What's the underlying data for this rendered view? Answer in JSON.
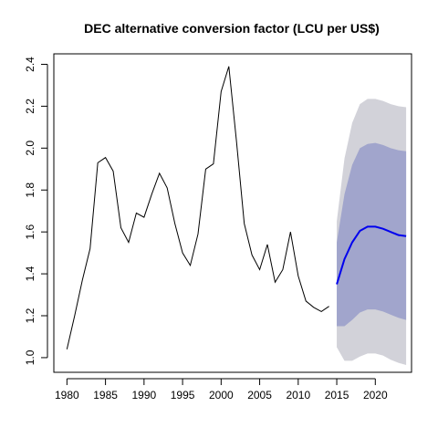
{
  "chart_data": {
    "type": "line",
    "title": "DEC alternative conversion factor (LCU per US$)",
    "xlabel": "",
    "ylabel": "",
    "xlim": [
      1978.3,
      2024.7
    ],
    "ylim": [
      0.93,
      2.45
    ],
    "x_ticks": [
      1980,
      1985,
      1990,
      1995,
      2000,
      2005,
      2010,
      2015,
      2020
    ],
    "y_ticks": [
      1.0,
      1.2,
      1.4,
      1.6,
      1.8,
      2.0,
      2.2,
      2.4
    ],
    "grid": false,
    "historical": {
      "x": [
        1980,
        1981,
        1982,
        1983,
        1984,
        1985,
        1986,
        1987,
        1988,
        1989,
        1990,
        1991,
        1992,
        1993,
        1994,
        1995,
        1996,
        1997,
        1998,
        1999,
        2000,
        2001,
        2002,
        2003,
        2004,
        2005,
        2006,
        2007,
        2008,
        2009,
        2010,
        2011,
        2012,
        2013,
        2014
      ],
      "y": [
        1.04,
        1.2,
        1.37,
        1.52,
        1.93,
        1.955,
        1.89,
        1.62,
        1.55,
        1.69,
        1.67,
        1.78,
        1.88,
        1.81,
        1.64,
        1.5,
        1.44,
        1.59,
        1.9,
        1.925,
        2.27,
        2.39,
        2.03,
        1.64,
        1.49,
        1.42,
        1.54,
        1.36,
        1.42,
        1.6,
        1.39,
        1.27,
        1.24,
        1.22,
        1.245
      ]
    },
    "forecast": {
      "x": [
        2015,
        2016,
        2017,
        2018,
        2019,
        2020,
        2021,
        2022,
        2023,
        2024
      ],
      "mean": [
        1.35,
        1.47,
        1.55,
        1.605,
        1.625,
        1.625,
        1.615,
        1.6,
        1.585,
        1.58
      ],
      "lo80": [
        1.15,
        1.15,
        1.18,
        1.215,
        1.23,
        1.23,
        1.22,
        1.205,
        1.19,
        1.18
      ],
      "hi80": [
        1.55,
        1.78,
        1.92,
        2.0,
        2.02,
        2.025,
        2.015,
        2.0,
        1.99,
        1.985
      ],
      "lo95": [
        1.05,
        0.985,
        0.985,
        1.005,
        1.02,
        1.02,
        1.01,
        0.99,
        0.975,
        0.965
      ],
      "hi95": [
        1.65,
        1.95,
        2.12,
        2.21,
        2.235,
        2.235,
        2.225,
        2.21,
        2.2,
        2.195
      ]
    },
    "colors": {
      "historical": "#000000",
      "mean": "#0000ee",
      "band80": "#a1a5cc",
      "band95": "#d2d2d9"
    }
  }
}
